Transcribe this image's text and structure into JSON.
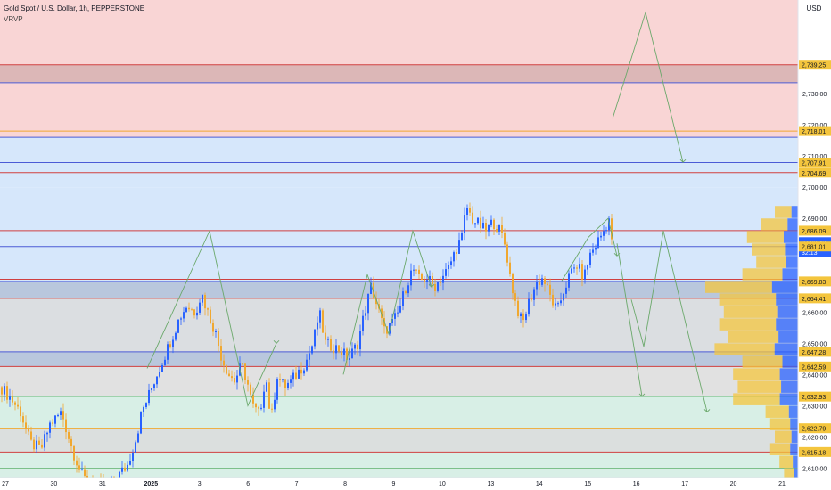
{
  "header": {
    "title": "Gold Spot / U.S. Dollar, 1h, PEPPERSTONE",
    "indicator": "VRVP",
    "currency": "USD"
  },
  "colors": {
    "bull": "#2962ff",
    "bear": "#f0a830",
    "zone_red": "#f9d5d5",
    "zone_blue": "#d6e7fb",
    "zone_green": "#d8efe6",
    "zone_gray": "#dcdcdc",
    "line_red": "#d04040",
    "line_blue": "#4b5bd6",
    "line_green": "#7cc08a",
    "line_orange": "#f0a830",
    "projection": "#6aa86a",
    "label_yellow": "#f4c53d",
    "label_blue": "#2962ff"
  },
  "chart_data": {
    "type": "candlestick",
    "symbol": "Gold Spot / U.S. Dollar",
    "interval": "1h",
    "source": "PEPPERSTONE",
    "ylim": [
      2607,
      2760
    ],
    "y_ticks": [
      2610,
      2620,
      2630,
      2640,
      2650,
      2660,
      2670,
      2680,
      2690,
      2700,
      2710,
      2720,
      2730
    ],
    "x_ticks": [
      "27",
      "30",
      "31",
      "2025",
      "3",
      "6",
      "7",
      "8",
      "9",
      "10",
      "13",
      "14",
      "15",
      "16",
      "17",
      "20",
      "21"
    ],
    "price_labels": [
      {
        "value": "2,739.25",
        "style": "yellow"
      },
      {
        "value": "2,718.01",
        "style": "yellow"
      },
      {
        "value": "2,707.91",
        "style": "yellow"
      },
      {
        "value": "2,704.69",
        "style": "yellow"
      },
      {
        "value": "2,686.09",
        "style": "yellow"
      },
      {
        "value": "2,682.42",
        "style": "blue"
      },
      {
        "value": "32:13",
        "style": "blue"
      },
      {
        "value": "2,681.01",
        "style": "yellow"
      },
      {
        "value": "2,669.83",
        "style": "yellow"
      },
      {
        "value": "2,664.41",
        "style": "yellow"
      },
      {
        "value": "2,647.28",
        "style": "yellow"
      },
      {
        "value": "2,642.59",
        "style": "yellow"
      },
      {
        "value": "2,632.93",
        "style": "yellow"
      },
      {
        "value": "2,622.79",
        "style": "yellow"
      },
      {
        "value": "2,615.18",
        "style": "yellow"
      }
    ],
    "zones": [
      {
        "from": 2716.0,
        "to": 2760.0,
        "color": "red"
      },
      {
        "from": 2733.5,
        "to": 2739.2,
        "color": "red_dark"
      },
      {
        "from": 2700.0,
        "to": 2716.0,
        "color": "blue"
      },
      {
        "from": 2644.0,
        "to": 2700.0,
        "color": "blue"
      },
      {
        "from": 2664.4,
        "to": 2669.8,
        "color": "blue_dark"
      },
      {
        "from": 2631.0,
        "to": 2664.4,
        "color": "gray"
      },
      {
        "from": 2642.6,
        "to": 2647.3,
        "color": "blue_dark"
      },
      {
        "from": 2607.0,
        "to": 2632.9,
        "color": "green"
      },
      {
        "from": 2615.2,
        "to": 2622.8,
        "color": "gray"
      }
    ],
    "levels": [
      {
        "price": 2739.25,
        "color": "red"
      },
      {
        "price": 2733.5,
        "color": "blue"
      },
      {
        "price": 2718.01,
        "color": "orange"
      },
      {
        "price": 2716.0,
        "color": "blue"
      },
      {
        "price": 2707.91,
        "color": "blue"
      },
      {
        "price": 2704.69,
        "color": "red"
      },
      {
        "price": 2686.09,
        "color": "red"
      },
      {
        "price": 2681.01,
        "color": "blue"
      },
      {
        "price": 2670.5,
        "color": "red"
      },
      {
        "price": 2669.83,
        "color": "blue"
      },
      {
        "price": 2664.41,
        "color": "red"
      },
      {
        "price": 2647.28,
        "color": "blue"
      },
      {
        "price": 2642.59,
        "color": "red"
      },
      {
        "price": 2632.93,
        "color": "green"
      },
      {
        "price": 2622.79,
        "color": "orange"
      },
      {
        "price": 2615.18,
        "color": "red"
      },
      {
        "price": 2610.0,
        "color": "green"
      }
    ],
    "price_path": [
      [
        0,
        2636
      ],
      [
        12,
        2632
      ],
      [
        22,
        2628
      ],
      [
        33,
        2618
      ],
      [
        45,
        2616
      ],
      [
        55,
        2624
      ],
      [
        68,
        2628
      ],
      [
        80,
        2616
      ],
      [
        92,
        2607
      ],
      [
        105,
        2605
      ],
      [
        118,
        2604
      ],
      [
        130,
        2607
      ],
      [
        142,
        2611
      ],
      [
        152,
        2620
      ],
      [
        158,
        2628
      ],
      [
        164,
        2632
      ],
      [
        172,
        2638
      ],
      [
        182,
        2645
      ],
      [
        192,
        2652
      ],
      [
        200,
        2658
      ],
      [
        208,
        2662
      ],
      [
        218,
        2660
      ],
      [
        225,
        2666
      ],
      [
        232,
        2660
      ],
      [
        240,
        2654
      ],
      [
        248,
        2645
      ],
      [
        256,
        2640
      ],
      [
        262,
        2638
      ],
      [
        270,
        2643
      ],
      [
        276,
        2638
      ],
      [
        282,
        2630
      ],
      [
        290,
        2627
      ],
      [
        297,
        2640
      ],
      [
        303,
        2625
      ],
      [
        310,
        2640
      ],
      [
        318,
        2636
      ],
      [
        326,
        2638
      ],
      [
        334,
        2641
      ],
      [
        342,
        2644
      ],
      [
        350,
        2650
      ],
      [
        357,
        2660
      ],
      [
        364,
        2650
      ],
      [
        372,
        2649
      ],
      [
        380,
        2648
      ],
      [
        390,
        2645
      ],
      [
        400,
        2650
      ],
      [
        408,
        2660
      ],
      [
        415,
        2668
      ],
      [
        422,
        2662
      ],
      [
        430,
        2654
      ],
      [
        438,
        2656
      ],
      [
        446,
        2660
      ],
      [
        454,
        2668
      ],
      [
        462,
        2674
      ],
      [
        470,
        2670
      ],
      [
        478,
        2671
      ],
      [
        486,
        2668
      ],
      [
        494,
        2671
      ],
      [
        502,
        2674
      ],
      [
        510,
        2680
      ],
      [
        517,
        2684
      ],
      [
        522,
        2694
      ],
      [
        528,
        2690
      ],
      [
        536,
        2688
      ],
      [
        544,
        2686
      ],
      [
        552,
        2689
      ],
      [
        560,
        2686
      ],
      [
        566,
        2681
      ],
      [
        572,
        2670
      ],
      [
        578,
        2662
      ],
      [
        585,
        2656
      ],
      [
        592,
        2663
      ],
      [
        600,
        2669
      ],
      [
        608,
        2671
      ],
      [
        616,
        2665
      ],
      [
        624,
        2660
      ],
      [
        630,
        2666
      ],
      [
        638,
        2672
      ],
      [
        646,
        2675
      ],
      [
        654,
        2671
      ],
      [
        660,
        2678
      ],
      [
        668,
        2682
      ],
      [
        676,
        2686
      ],
      [
        682,
        2690
      ],
      [
        685,
        2682
      ]
    ],
    "projections": [
      {
        "points": [
          [
            165,
            2642
          ],
          [
            235,
            2686
          ],
          [
            278,
            2630
          ],
          [
            310,
            2650
          ]
        ]
      },
      {
        "points": [
          [
            385,
            2640
          ],
          [
            412,
            2672
          ],
          [
            436,
            2653
          ],
          [
            463,
            2686
          ],
          [
            484,
            2668
          ]
        ]
      },
      {
        "points": [
          [
            630,
            2670
          ],
          [
            660,
            2684
          ],
          [
            682,
            2690
          ],
          [
            692,
            2678
          ]
        ]
      },
      {
        "points": [
          [
            687,
            2722
          ],
          [
            724,
            2756
          ],
          [
            766,
            2708
          ]
        ]
      },
      {
        "points": [
          [
            692,
            2682
          ],
          [
            720,
            2633
          ]
        ]
      },
      {
        "points": [
          [
            708,
            2664
          ],
          [
            722,
            2649
          ],
          [
            744,
            2686
          ],
          [
            793,
            2628
          ]
        ]
      }
    ],
    "volume_profile": [
      {
        "price": 2692,
        "volume": 0.25
      },
      {
        "price": 2688,
        "volume": 0.4
      },
      {
        "price": 2684,
        "volume": 0.55
      },
      {
        "price": 2680,
        "volume": 0.5
      },
      {
        "price": 2676,
        "volume": 0.45
      },
      {
        "price": 2672,
        "volume": 0.6
      },
      {
        "price": 2668,
        "volume": 1.0
      },
      {
        "price": 2664,
        "volume": 0.85
      },
      {
        "price": 2660,
        "volume": 0.8
      },
      {
        "price": 2656,
        "volume": 0.85
      },
      {
        "price": 2652,
        "volume": 0.75
      },
      {
        "price": 2648,
        "volume": 0.9
      },
      {
        "price": 2644,
        "volume": 0.6
      },
      {
        "price": 2640,
        "volume": 0.7
      },
      {
        "price": 2636,
        "volume": 0.65
      },
      {
        "price": 2632,
        "volume": 0.7
      },
      {
        "price": 2628,
        "volume": 0.35
      },
      {
        "price": 2624,
        "volume": 0.3
      },
      {
        "price": 2620,
        "volume": 0.25
      },
      {
        "price": 2616,
        "volume": 0.3
      },
      {
        "price": 2612,
        "volume": 0.2
      },
      {
        "price": 2608,
        "volume": 0.15
      }
    ]
  }
}
